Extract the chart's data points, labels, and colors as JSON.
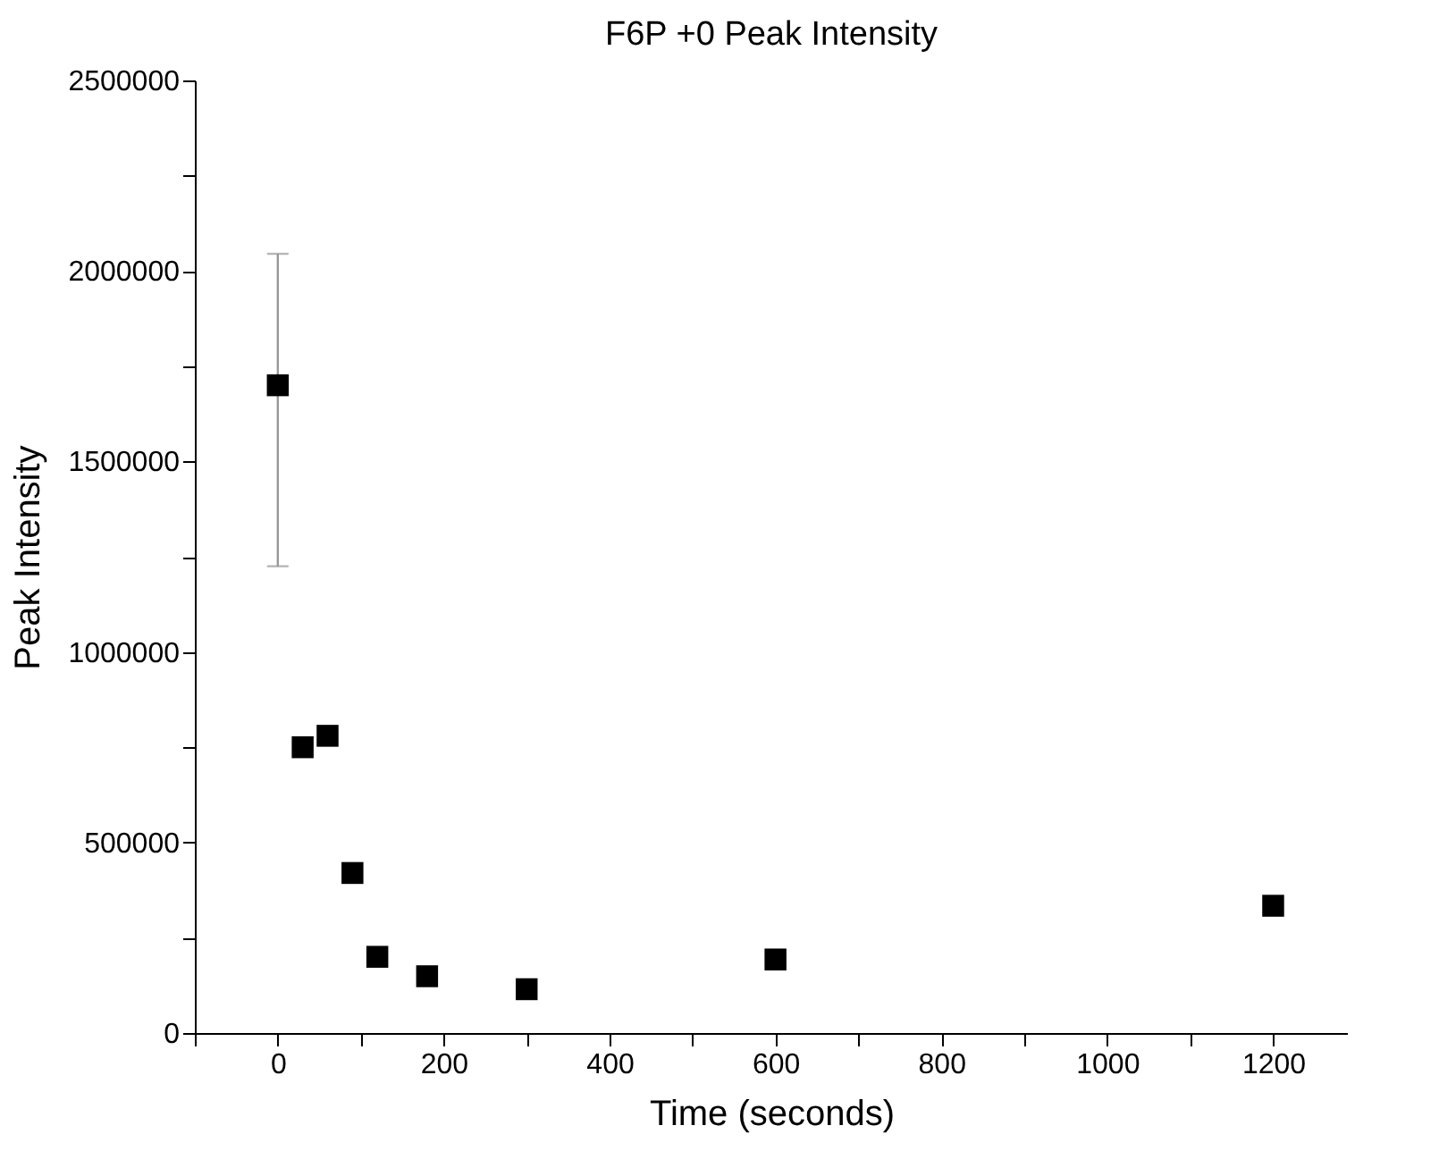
{
  "chart_data": {
    "type": "scatter",
    "title": "F6P +0 Peak Intensity",
    "xlabel": "Time (seconds)",
    "ylabel": "Peak Intensity",
    "x": [
      0,
      30,
      60,
      90,
      120,
      180,
      300,
      600,
      1200
    ],
    "series": [
      {
        "color": "#000000",
        "values": [
          1700000,
          750000,
          780000,
          420000,
          200000,
          149000,
          115000,
          193000,
          334000
        ],
        "errors": [
          [
            1225000,
            2045000
          ],
          null,
          null,
          null,
          null,
          null,
          null,
          null,
          null
        ]
      }
    ],
    "marker": "square",
    "xlim": [
      -100,
      1290
    ],
    "xticks": [
      {
        "value": -100,
        "label": null
      },
      0,
      {
        "value": 100,
        "label": null
      },
      200,
      {
        "value": 300,
        "label": null
      },
      400,
      {
        "value": 500,
        "label": null
      },
      600,
      {
        "value": 700,
        "label": null
      },
      800,
      {
        "value": 900,
        "label": null
      },
      1000,
      {
        "value": 1100,
        "label": null
      },
      1200
    ],
    "ylim": [
      0,
      2500000
    ],
    "yticks": [
      0,
      {
        "value": 250000,
        "label": null
      },
      500000,
      {
        "value": 750000,
        "label": null
      },
      1000000,
      {
        "value": 1250000,
        "label": null
      },
      1500000,
      {
        "value": 1750000,
        "label": null
      },
      2000000,
      {
        "value": 2250000,
        "label": null
      },
      2500000
    ]
  }
}
